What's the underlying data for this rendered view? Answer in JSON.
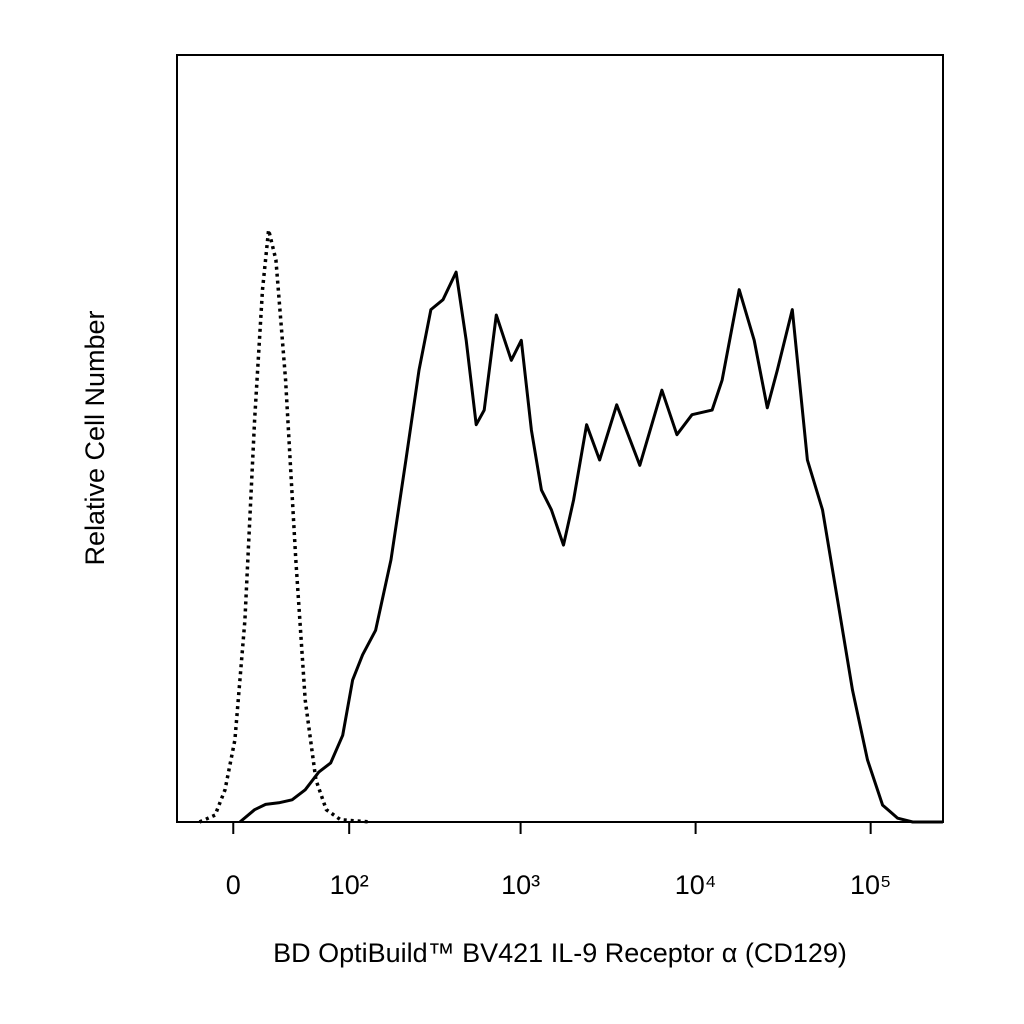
{
  "chart_data": {
    "type": "line",
    "xlabel": "BD OptiBuild™ BV421 IL-9 Receptor α (CD129)",
    "ylabel": "Relative Cell Number",
    "xscale": "biexponential",
    "xlim": [
      -37,
      259000
    ],
    "ylim": [
      0,
      100
    ],
    "xticks": [
      0,
      {
        "value": 100,
        "label": "10²"
      },
      {
        "value": 1000,
        "label": "10³"
      },
      {
        "value": 10000,
        "label": "10⁴"
      },
      {
        "value": 100000,
        "label": "10⁵"
      }
    ],
    "series": [
      {
        "color": "#000000",
        "dash": "solid",
        "x": [
          4,
          13,
          20,
          29,
          39,
          50,
          63,
          76,
          91,
          105,
          121,
          145,
          179,
          219,
          261,
          306,
          359,
          427,
          488,
          557,
          619,
          726,
          885,
          1010,
          1153,
          1316,
          1501,
          1759,
          2008,
          2383,
          2830,
          3542,
          4798,
          6416,
          7821,
          9532,
          12418,
          14172,
          17741,
          21621,
          25672,
          29300,
          35700,
          43500,
          53100,
          64700,
          78800,
          96000,
          117000,
          142700,
          173800,
          258800
        ],
        "values": [
          0,
          1.6,
          2.3,
          2.5,
          2.9,
          4.2,
          6.5,
          7.7,
          11.3,
          18.5,
          21.8,
          25.0,
          34.2,
          47.2,
          58.9,
          66.8,
          68.1,
          71.7,
          62.8,
          51.8,
          53.7,
          66.1,
          60.2,
          62.8,
          51.1,
          43.3,
          40.7,
          36.1,
          42.0,
          51.8,
          47.2,
          54.4,
          46.5,
          56.3,
          50.5,
          53.1,
          53.7,
          57.6,
          69.4,
          62.8,
          54.0,
          58.9,
          66.8,
          47.2,
          40.7,
          28.9,
          17.2,
          8.1,
          2.2,
          0.5,
          0,
          0
        ]
      },
      {
        "color": "#000000",
        "dash": "dotted",
        "x": [
          -21,
          -11,
          -5,
          1,
          7,
          13,
          18,
          22,
          27,
          34,
          42,
          50,
          60,
          71,
          88,
          136
        ],
        "values": [
          0,
          0.9,
          4.2,
          10.7,
          26.3,
          52.4,
          69.4,
          77.2,
          73.3,
          57.6,
          34.2,
          15.9,
          5.5,
          1.6,
          0.3,
          0
        ]
      }
    ]
  }
}
